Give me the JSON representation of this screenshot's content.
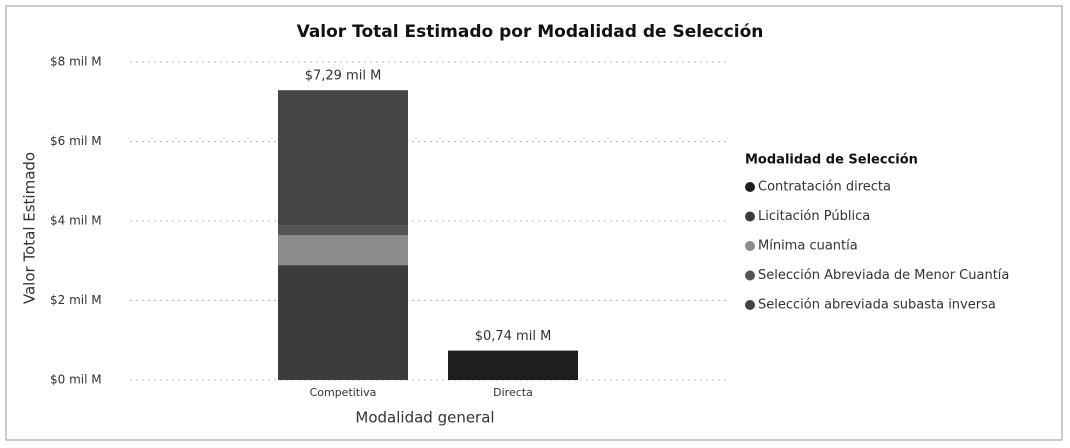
{
  "chart_data": {
    "type": "stacked_bar",
    "title": "Valor Total Estimado por Modalidad de Selección",
    "x_label": "Modalidad general",
    "y_label": "Valor Total Estimado",
    "legend_title": "Modalidad de Selección",
    "legend_position": "right",
    "categories": [
      "Competitiva",
      "Directa"
    ],
    "series": [
      {
        "name": "Contratación directa",
        "color": "#1e1e1e",
        "values": [
          0,
          0.74
        ]
      },
      {
        "name": "Licitación Pública",
        "color": "#3c3c3c",
        "values": [
          2.89,
          0
        ]
      },
      {
        "name": "Mínima cuantía",
        "color": "#8c8c8c",
        "values": [
          0.75,
          0
        ]
      },
      {
        "name": "Selección Abreviada de Menor Cuantía",
        "color": "#555555",
        "values": [
          0.25,
          0
        ]
      },
      {
        "name": "Selección abreviada subasta inversa",
        "color": "#444444",
        "values": [
          3.4,
          0
        ]
      }
    ],
    "totals": [
      7.29,
      0.74
    ],
    "total_labels": [
      "$7,29 mil M",
      "$0,74 mil M"
    ],
    "ylim": [
      0,
      8
    ],
    "yticks": [
      {
        "value": 0,
        "label": "$0 mil M"
      },
      {
        "value": 2,
        "label": "$2 mil M"
      },
      {
        "value": 4,
        "label": "$4 mil M"
      },
      {
        "value": 6,
        "label": "$6 mil M"
      },
      {
        "value": 8,
        "label": "$8 mil M"
      }
    ],
    "grid": true
  }
}
